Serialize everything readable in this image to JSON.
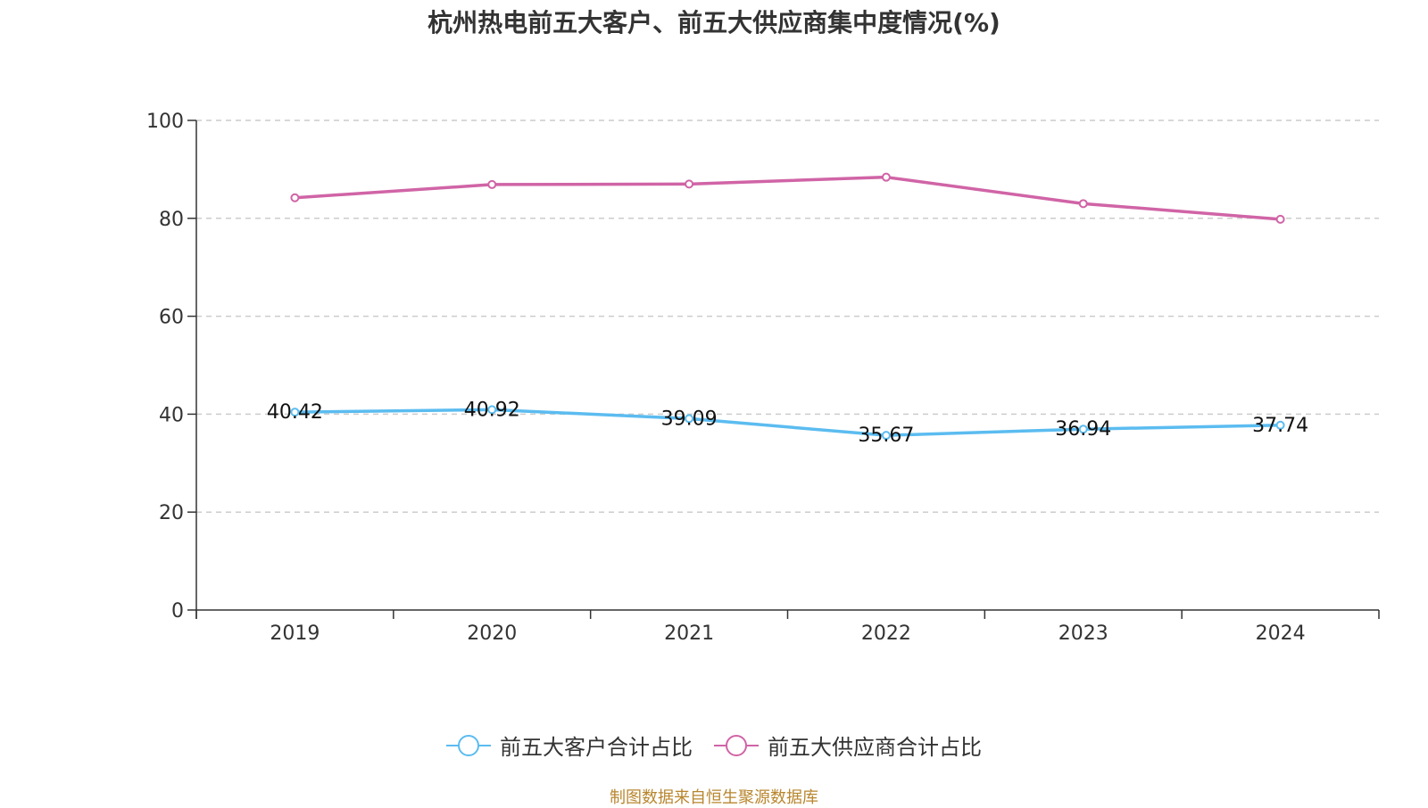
{
  "chart_data": {
    "type": "line",
    "title": "杭州热电前五大客户、前五大供应商集中度情况(%)",
    "categories": [
      "2019",
      "2020",
      "2021",
      "2022",
      "2023",
      "2024"
    ],
    "ylim": [
      0,
      100
    ],
    "yticks": [
      0,
      20,
      40,
      60,
      80,
      100
    ],
    "grid": true,
    "legend_position": "bottom",
    "series": [
      {
        "name": "前五大客户合计占比",
        "color": "#5bbcf0",
        "values": [
          40.42,
          40.92,
          39.09,
          35.67,
          36.94,
          37.74
        ],
        "labels": [
          "40.42",
          "40.92",
          "39.09",
          "35.67",
          "36.94",
          "37.74"
        ]
      },
      {
        "name": "前五大供应商合计占比",
        "color": "#d064a6",
        "values": [
          84.2,
          86.9,
          87.0,
          88.4,
          83.0,
          79.8
        ]
      }
    ]
  },
  "source_note": "制图数据来自恒生聚源数据库"
}
